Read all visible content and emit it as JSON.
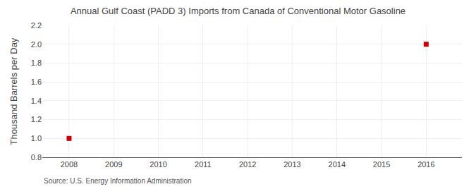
{
  "chart_data": {
    "type": "scatter",
    "title": "Annual Gulf Coast (PADD 3) Imports from Canada of Conventional Motor Gasoline",
    "ylabel": "Thousand Barrels per Day",
    "annotations": [
      "Source: U.S. Energy Information Administration"
    ],
    "x": [
      2008,
      2016
    ],
    "values": [
      1.0,
      2.0
    ],
    "color": "#cc0000",
    "marker": "square",
    "xlim": [
      2007.4,
      2016.8
    ],
    "ylim": [
      0.8,
      2.2
    ],
    "xticks": [
      2008,
      2009,
      2010,
      2011,
      2012,
      2013,
      2014,
      2015,
      2016
    ],
    "yticks": [
      0.8,
      {
        "value": 1,
        "label": "1.0"
      },
      1.2,
      1.4,
      1.6,
      1.8,
      {
        "value": 2,
        "label": "2.0"
      },
      2.2
    ],
    "grid": true
  }
}
